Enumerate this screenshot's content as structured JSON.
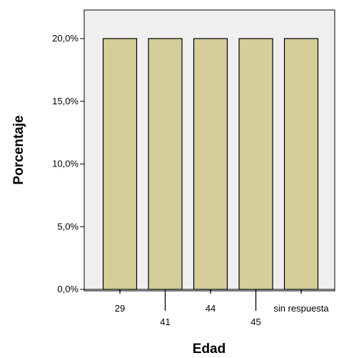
{
  "chart_data": {
    "type": "bar",
    "title": "",
    "xlabel": "Edad",
    "ylabel": "Porcentaje",
    "categories": [
      "29",
      "41",
      "44",
      "45",
      "sin respuesta"
    ],
    "values": [
      20,
      20,
      20,
      20,
      20
    ],
    "ylim": [
      0,
      22
    ],
    "yticks": [
      0,
      5,
      10,
      15,
      20
    ],
    "ytick_labels": [
      "0,0%",
      "5,0%",
      "10,0%",
      "15,0%",
      "20,0%"
    ],
    "grid": false,
    "legend": "none",
    "colors": {
      "bar_fill": "#d5cd9a",
      "bar_stroke": "#000000",
      "plot_background": "#efefef",
      "page_background": "#ffffff"
    }
  }
}
